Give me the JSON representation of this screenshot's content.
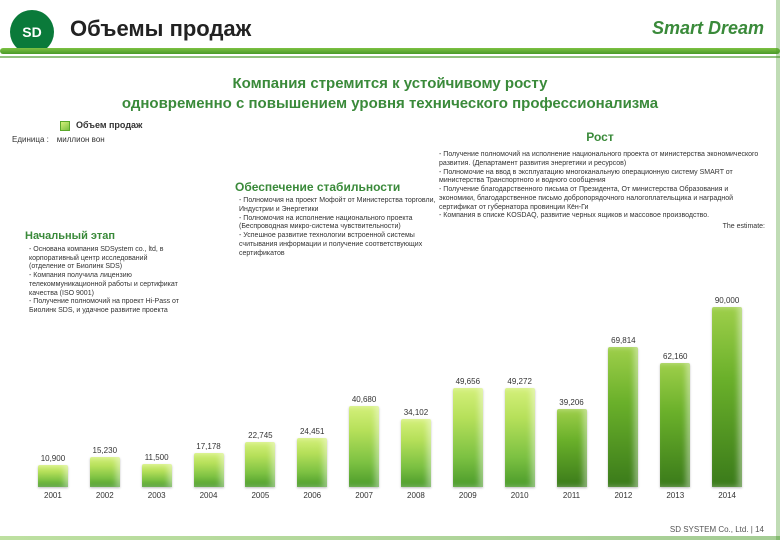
{
  "header": {
    "logo_text": "SD",
    "title": "Объемы продаж",
    "brand": "Smart Dream"
  },
  "subtitle": {
    "line1": "Компания стремится к устойчивому росту",
    "line2": "одновременно с повышением уровня технического профессионализма",
    "color": "#3a8a3a"
  },
  "labels": {
    "volume": "Объем продаж",
    "unit_label": "Единица :",
    "unit_value": "миллион вон",
    "start_hd": "Начальный этап",
    "stability_hd": "Обеспечение стабильности",
    "growth_hd": "Рост"
  },
  "start_items": [
    "Основана компания SDSystem co., ltd, в корпоративный центр исследований (отделение от Биолинк SDS)",
    "Компания получила лицензию телекоммуникационной работы и сертификат качества (ISO 9001)",
    "Получение полномочий на проект Hi-Pass от Биолинк SDS, и удачное развитие проекта"
  ],
  "stability_items": [
    "Полномочия на проект Мофойт от Министерства торговли, Индустрии и Энергетики",
    "Полномочия на исполнение национального проекта (Беспроводная микро-система чувствительности)",
    "Успешное развитие технологии встроенной системы считывания информации и получение соответствующих сертификатов"
  ],
  "growth_items": [
    "Получение полномочий на исполнение национального проекта от министерства экономического развития. (Департамент развития энергетики и ресурсов)",
    "Полномочие на ввод в эксплуатацию многоканальную операционную систему SMART от министерства Транспортного и водного сообщения",
    "Получение благодарственного письма от Президента, От министерства Образования и экономики, благодарственное письмо добропорядочного налогоплательщика и наградной сертификат от губернатора провинции Кён-Ги",
    "Компания в списке KOSDAQ, развитие черных ящиков и массовое производство."
  ],
  "estimate_label": "The estimate:",
  "chart": {
    "type": "bar",
    "ymax": 90000,
    "background_color": "#ffffff",
    "bar_colors_primary": "#7cc142",
    "bar_colors_dark": "#3a7a1a",
    "label_fontsize": 8,
    "value_fontsize": 8,
    "years": [
      "2001",
      "2002",
      "2003",
      "2004",
      "2005",
      "2006",
      "2007",
      "2008",
      "2009",
      "2010",
      "2011",
      "2012",
      "2013",
      "2014"
    ],
    "values": [
      10900,
      15230,
      11500,
      17178,
      22745,
      24451,
      40680,
      34102,
      49656,
      49272,
      39206,
      69814,
      62160,
      90000
    ],
    "dark_indices": [
      10,
      11,
      12,
      13
    ]
  },
  "footer": "SD SYSTEM Co., Ltd.  | 14"
}
